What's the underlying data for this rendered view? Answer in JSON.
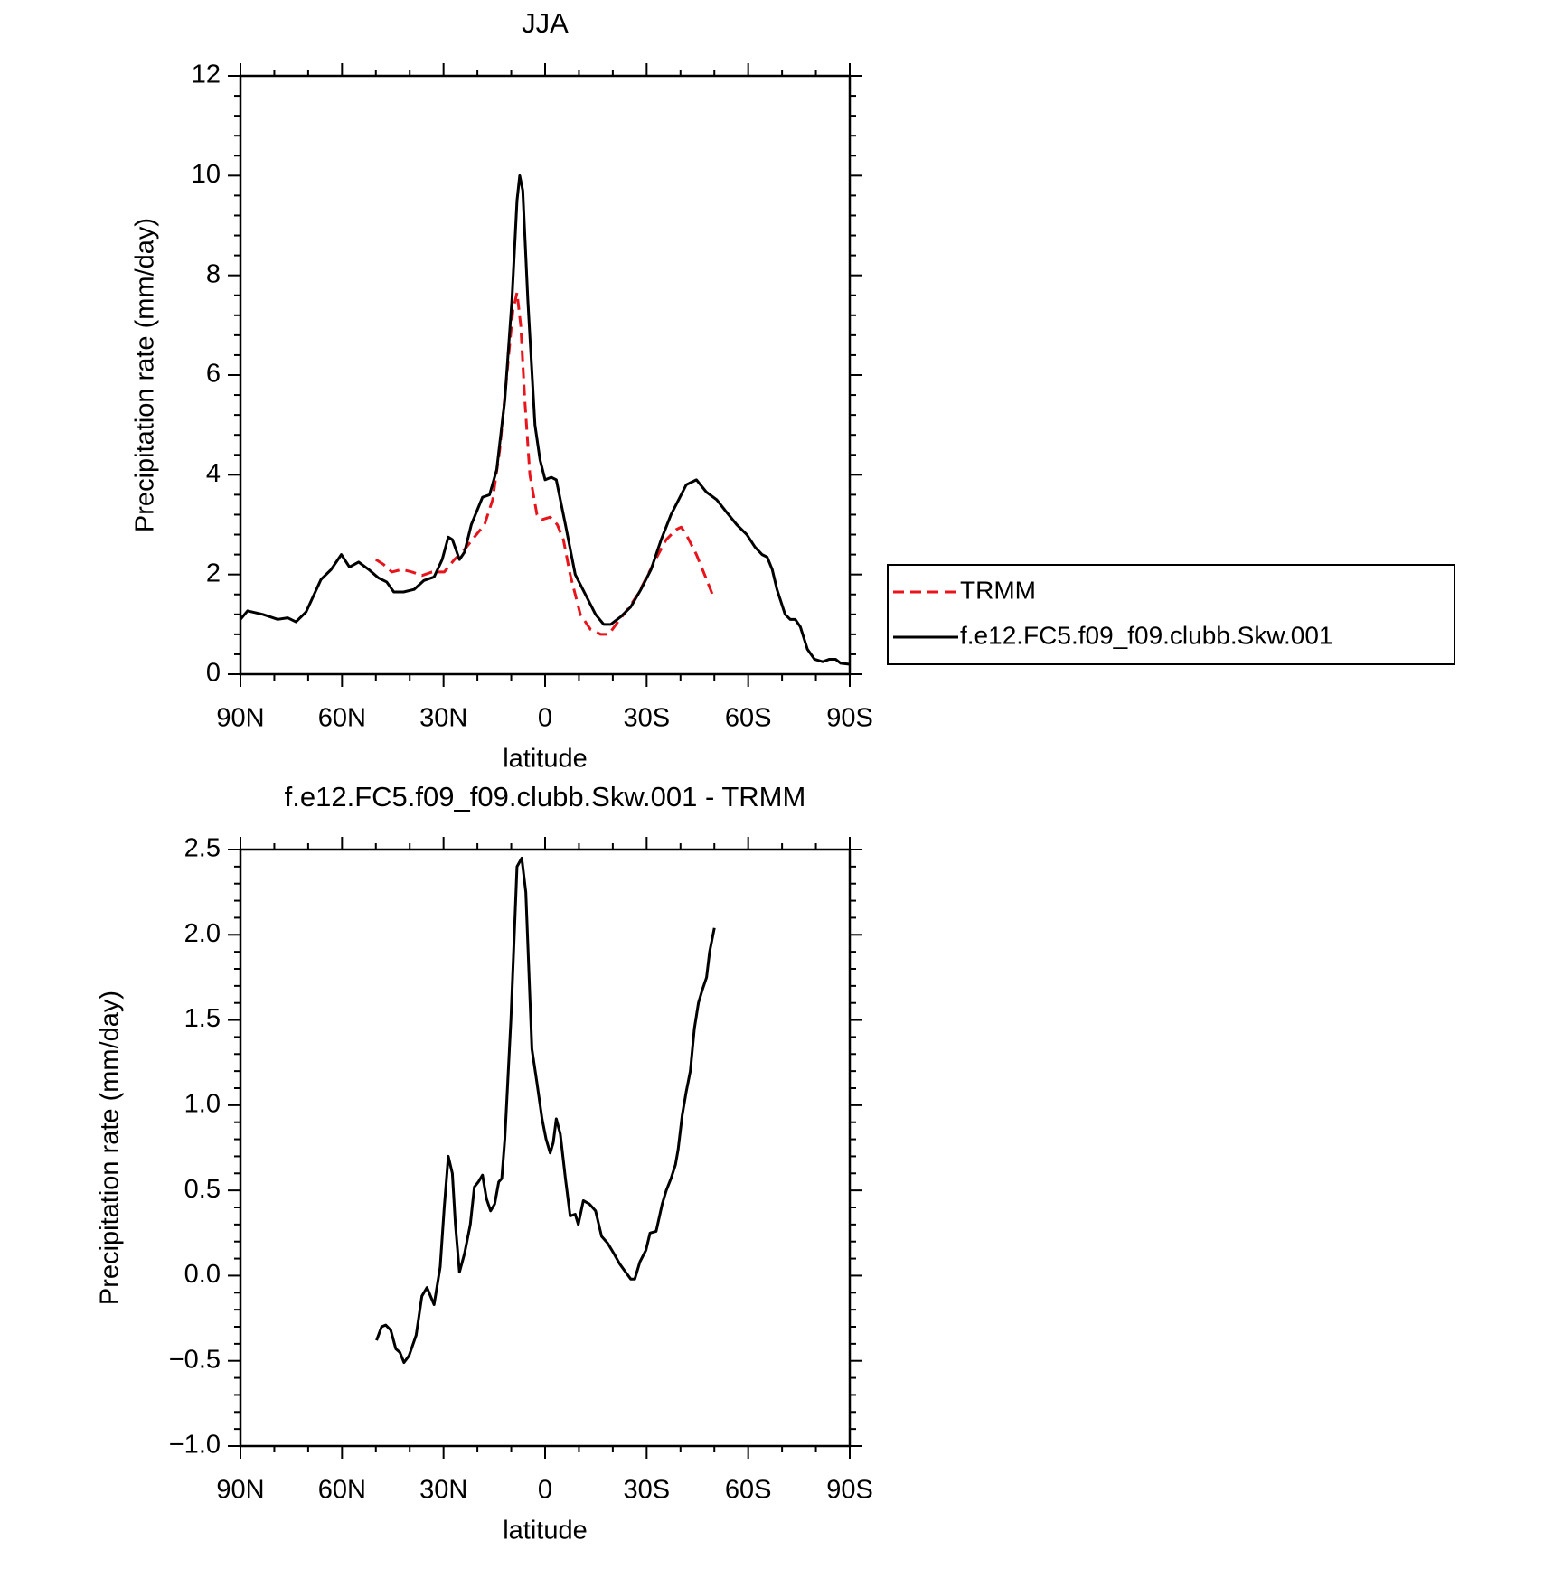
{
  "chart_data": [
    {
      "type": "line",
      "title": "JJA",
      "x_label": "latitude",
      "y_label": "Precipitation rate (mm/day)",
      "xlim": [
        90,
        -90
      ],
      "xticks": [
        {
          "value": 90,
          "label": "90N"
        },
        {
          "value": 60,
          "label": "60N"
        },
        {
          "value": 30,
          "label": "30N"
        },
        0,
        {
          "value": -30,
          "label": "30S"
        },
        {
          "value": -60,
          "label": "60S"
        },
        {
          "value": -90,
          "label": "90S"
        }
      ],
      "ylim": [
        0,
        12
      ],
      "yticks": [
        0,
        2,
        4,
        6,
        8,
        10,
        12
      ],
      "legend": "right",
      "series": [
        {
          "name": "TRMM",
          "color": "#e8141b",
          "linestyle": "dashed",
          "x": [
            50,
            47.7,
            45.3,
            42.3,
            39.3,
            36.4,
            33.4,
            29.8,
            26.8,
            23.8,
            20.9,
            17.9,
            15.5,
            13.4,
            11.3,
            9.5,
            8.3,
            7.2,
            6,
            4.5,
            2.4,
            0.9,
            -1.5,
            -3.6,
            -5.4,
            -7.4,
            -10.4,
            -13.4,
            -16.4,
            -18.8,
            -21.5,
            -24.4,
            -27.4,
            -30.4,
            -33.4,
            -35.8,
            -38.7,
            -40.2,
            -41.7,
            -44.7,
            -47.7,
            -50
          ],
          "values": [
            2.3,
            2.2,
            2.05,
            2.1,
            2.05,
            1.98,
            2.05,
            2.05,
            2.3,
            2.5,
            2.75,
            3.0,
            3.5,
            4.5,
            6.0,
            7.3,
            7.65,
            7.0,
            5.5,
            4.0,
            3.2,
            3.1,
            3.15,
            3.0,
            2.7,
            2.0,
            1.2,
            0.9,
            0.8,
            0.8,
            1.05,
            1.3,
            1.6,
            2.0,
            2.4,
            2.7,
            2.9,
            2.95,
            2.8,
            2.4,
            1.9,
            1.5
          ]
        },
        {
          "name": "f.e12.FC5.f09_f09.clubb.Skw.001",
          "color": "#000000",
          "linestyle": "solid",
          "x": [
            90,
            87.9,
            83.4,
            79,
            76,
            73.6,
            70.6,
            66.2,
            63.2,
            60.2,
            57.8,
            55.1,
            52.1,
            49.2,
            46.8,
            44.7,
            41.8,
            38.7,
            35.8,
            32.8,
            30.4,
            28.6,
            27.4,
            25.3,
            23.8,
            21.8,
            18.5,
            16.4,
            14.3,
            11.9,
            9.8,
            8.3,
            7.5,
            6.6,
            5.1,
            3,
            1.5,
            0,
            -1.8,
            -3.3,
            -6,
            -8.9,
            -11.9,
            -14.9,
            -17.3,
            -19.4,
            -22.3,
            -25.3,
            -28.3,
            -31.3,
            -34.3,
            -37.2,
            -40.2,
            -41.7,
            -44.7,
            -47.7,
            -50.7,
            -53.6,
            -56.6,
            -59.6,
            -62,
            -64.1,
            -65.6,
            -67.1,
            -68.5,
            -70.9,
            -72.4,
            -73.9,
            -75.4,
            -77.5,
            -79.6,
            -82,
            -84,
            -85.8,
            -87.3,
            -90
          ],
          "values": [
            1.1,
            1.27,
            1.2,
            1.1,
            1.13,
            1.05,
            1.25,
            1.9,
            2.1,
            2.4,
            2.15,
            2.25,
            2.1,
            1.93,
            1.85,
            1.65,
            1.65,
            1.7,
            1.88,
            1.95,
            2.3,
            2.75,
            2.7,
            2.3,
            2.45,
            3.0,
            3.55,
            3.6,
            4.1,
            5.5,
            7.5,
            9.5,
            10.0,
            9.7,
            7.5,
            5.0,
            4.3,
            3.9,
            3.95,
            3.9,
            3.0,
            2.0,
            1.6,
            1.2,
            1.0,
            1.0,
            1.15,
            1.35,
            1.7,
            2.1,
            2.7,
            3.2,
            3.6,
            3.8,
            3.9,
            3.65,
            3.5,
            3.25,
            3.0,
            2.8,
            2.55,
            2.4,
            2.35,
            2.1,
            1.7,
            1.2,
            1.1,
            1.1,
            0.95,
            0.5,
            0.3,
            0.25,
            0.3,
            0.3,
            0.22,
            0.2
          ]
        }
      ]
    },
    {
      "type": "line",
      "title": "f.e12.FC5.f09_f09.clubb.Skw.001 - TRMM",
      "x_label": "latitude",
      "y_label": "Precipitation rate (mm/day)",
      "xlim": [
        90,
        -90
      ],
      "xticks": [
        {
          "value": 90,
          "label": "90N"
        },
        {
          "value": 60,
          "label": "60N"
        },
        {
          "value": 30,
          "label": "30N"
        },
        0,
        {
          "value": -30,
          "label": "30S"
        },
        {
          "value": -60,
          "label": "60S"
        },
        {
          "value": -90,
          "label": "90S"
        }
      ],
      "ylim": [
        -1,
        2.5
      ],
      "yticks": [
        {
          "value": -1,
          "label": "−1.0"
        },
        {
          "value": -0.5,
          "label": "−0.5"
        },
        {
          "value": 0,
          "label": "0.0"
        },
        0.5,
        {
          "value": 1,
          "label": "1.0"
        },
        1.5,
        {
          "value": 2,
          "label": "2.0"
        },
        2.5
      ],
      "series": [
        {
          "color": "#000000",
          "linestyle": "solid",
          "x": [
            49.8,
            48.3,
            47.1,
            45.6,
            44.1,
            42.9,
            41.7,
            40.2,
            38.1,
            36.4,
            34.9,
            32.8,
            31,
            29.8,
            28.6,
            27.4,
            26.5,
            25.3,
            23.8,
            22.1,
            20.9,
            19.7,
            18.5,
            17.3,
            16.1,
            14.9,
            13.7,
            12.8,
            11.9,
            10.1,
            8.3,
            6.9,
            5.7,
            3.9,
            2.4,
            0.9,
            -0.3,
            -1.5,
            -2.4,
            -3.3,
            -4.5,
            -6,
            -7.4,
            -8.9,
            -9.8,
            -11.3,
            -13.1,
            -14.9,
            -16.7,
            -18.5,
            -20.3,
            -22,
            -23.8,
            -25.3,
            -26.5,
            -28,
            -29.8,
            -31,
            -32.8,
            -34.6,
            -35.8,
            -37.2,
            -38.5,
            -39.3,
            -40.5,
            -41.7,
            -42.9,
            -44.1,
            -45.3,
            -46.5,
            -47.7,
            -48.6,
            -50
          ],
          "values": [
            -0.38,
            -0.3,
            -0.29,
            -0.32,
            -0.43,
            -0.45,
            -0.51,
            -0.47,
            -0.35,
            -0.12,
            -0.07,
            -0.17,
            0.05,
            0.4,
            0.7,
            0.6,
            0.3,
            0.02,
            0.13,
            0.3,
            0.52,
            0.55,
            0.59,
            0.45,
            0.38,
            0.42,
            0.55,
            0.57,
            0.8,
            1.5,
            2.4,
            2.45,
            2.25,
            1.33,
            1.13,
            0.92,
            0.8,
            0.72,
            0.78,
            0.92,
            0.83,
            0.57,
            0.35,
            0.36,
            0.3,
            0.44,
            0.42,
            0.38,
            0.23,
            0.19,
            0.13,
            0.07,
            0.02,
            -0.02,
            -0.02,
            0.08,
            0.15,
            0.25,
            0.26,
            0.42,
            0.5,
            0.57,
            0.65,
            0.74,
            0.94,
            1.08,
            1.2,
            1.45,
            1.6,
            1.68,
            1.75,
            1.9,
            2.04
          ]
        }
      ]
    }
  ]
}
